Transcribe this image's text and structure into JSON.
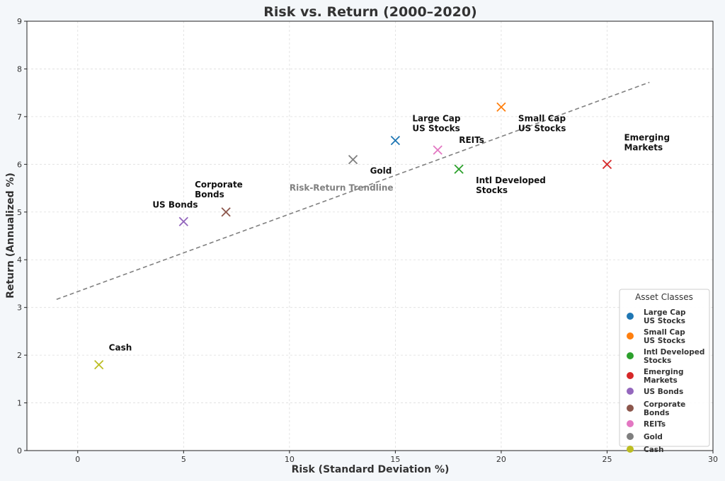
{
  "chart_data": {
    "type": "scatter",
    "title": "Risk vs. Return (2000–2020)",
    "xlabel": "Risk (Standard Deviation %)",
    "ylabel": "Return (Annualized %)",
    "xlim": [
      -2.4,
      30
    ],
    "ylim": [
      0,
      9
    ],
    "xticks": [
      0,
      5,
      10,
      15,
      20,
      25,
      30
    ],
    "yticks": [
      0,
      1,
      2,
      3,
      4,
      5,
      6,
      7,
      8,
      9
    ],
    "grid": true,
    "legend_title": "Asset Classes",
    "legend_position": "bottom-right",
    "series": [
      {
        "name": "Large Cap US Stocks",
        "label_lines": [
          "Large Cap",
          "US Stocks"
        ],
        "legend_lines": [
          "Large Cap",
          "US Stocks"
        ],
        "x": 15,
        "y": 6.5,
        "color": "#1f77b4"
      },
      {
        "name": "Small Cap US Stocks",
        "label_lines": [
          "Small Cap",
          "US Stocks"
        ],
        "legend_lines": [
          "Small Cap",
          "US Stocks"
        ],
        "x": 20,
        "y": 7.2,
        "color": "#ff7f0e"
      },
      {
        "name": "Intl Developed Stocks",
        "label_lines": [
          "Intl Developed",
          "Stocks"
        ],
        "legend_lines": [
          "Intl Developed",
          "Stocks"
        ],
        "x": 18,
        "y": 5.9,
        "color": "#2ca02c"
      },
      {
        "name": "Emerging Markets",
        "label_lines": [
          "Emerging",
          "Markets"
        ],
        "legend_lines": [
          "Emerging",
          "Markets"
        ],
        "x": 25,
        "y": 6.0,
        "color": "#d62728"
      },
      {
        "name": "US Bonds",
        "label_lines": [
          "US Bonds"
        ],
        "legend_lines": [
          "US Bonds"
        ],
        "x": 5,
        "y": 4.8,
        "color": "#9467bd"
      },
      {
        "name": "Corporate Bonds",
        "label_lines": [
          "Corporate",
          "Bonds"
        ],
        "legend_lines": [
          "Corporate",
          "Bonds"
        ],
        "x": 7,
        "y": 5.0,
        "color": "#8c564b"
      },
      {
        "name": "REITs",
        "label_lines": [
          "REITs"
        ],
        "legend_lines": [
          "REITs"
        ],
        "x": 17,
        "y": 6.3,
        "color": "#e377c2"
      },
      {
        "name": "Gold",
        "label_lines": [
          "Gold"
        ],
        "legend_lines": [
          "Gold"
        ],
        "x": 13,
        "y": 6.1,
        "color": "#7f7f7f"
      },
      {
        "name": "Cash",
        "label_lines": [
          "Cash"
        ],
        "legend_lines": [
          "Cash"
        ],
        "x": 1,
        "y": 1.8,
        "color": "#bcbd22"
      }
    ],
    "trendline": {
      "label": "Risk-Return Trendline",
      "x": [
        -1,
        27
      ],
      "y": [
        3.17,
        7.72
      ],
      "color": "#808080"
    }
  }
}
